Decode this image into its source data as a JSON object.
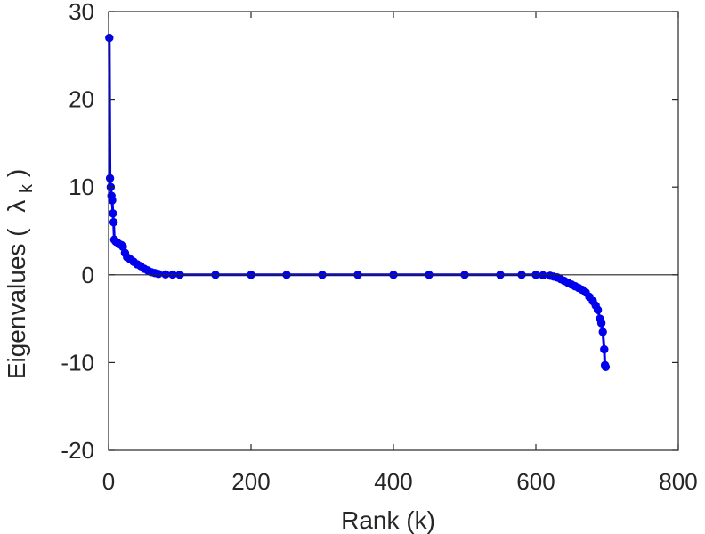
{
  "chart_data": {
    "type": "line",
    "xlabel": "Rank (k)",
    "ylabel": {
      "text": "Eigenvalues (",
      "symbol": "λ",
      "subscript": "k",
      "close": ")"
    },
    "xlim": [
      0,
      800
    ],
    "ylim": [
      -20,
      30
    ],
    "xticks": [
      0,
      200,
      400,
      600,
      800
    ],
    "yticks": [
      -20,
      -10,
      0,
      10,
      20,
      30
    ],
    "grid": false,
    "zero_line": true,
    "series": [
      {
        "color": "#0000ee",
        "marker": "circle",
        "x": [
          1,
          2,
          3,
          4,
          5,
          6,
          7,
          8,
          10,
          12,
          15,
          18,
          20,
          23,
          26,
          30,
          35,
          40,
          45,
          50,
          55,
          60,
          65,
          70,
          80,
          90,
          100,
          150,
          200,
          250,
          300,
          350,
          400,
          450,
          500,
          550,
          580,
          600,
          610,
          620,
          625,
          630,
          635,
          640,
          645,
          650,
          655,
          660,
          665,
          670,
          675,
          680,
          684,
          687,
          690,
          692,
          694,
          696,
          697,
          698
        ],
        "y": [
          27,
          11,
          10,
          9,
          8.5,
          7,
          6,
          4,
          3.8,
          3.7,
          3.5,
          3.4,
          3.2,
          2.5,
          2,
          1.8,
          1.5,
          1.2,
          1,
          0.7,
          0.5,
          0.3,
          0.2,
          0.1,
          0.05,
          0.02,
          0.01,
          0,
          0,
          0,
          0,
          0,
          0,
          0,
          0,
          0,
          0,
          0,
          -0.05,
          -0.1,
          -0.2,
          -0.3,
          -0.5,
          -0.7,
          -0.9,
          -1.1,
          -1.3,
          -1.5,
          -1.7,
          -2,
          -2.5,
          -3,
          -3.5,
          -4,
          -5,
          -5.5,
          -6.5,
          -8.5,
          -10.3,
          -10.5
        ]
      }
    ]
  }
}
